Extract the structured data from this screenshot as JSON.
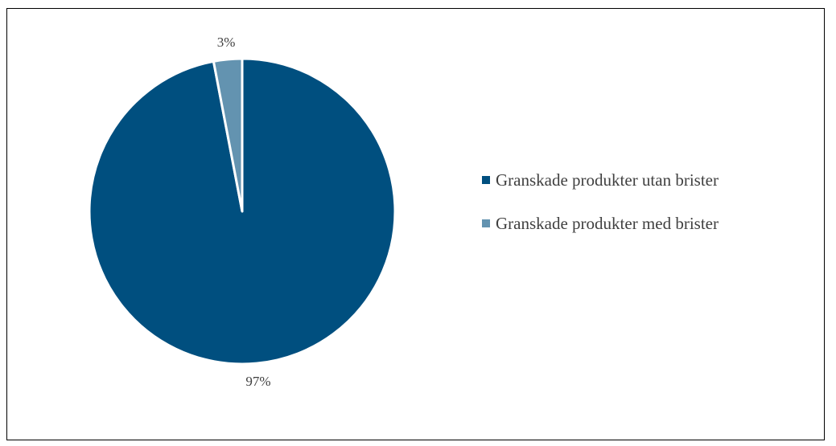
{
  "chart_data": {
    "type": "pie",
    "categories": [
      "Granskade produkter utan brister",
      "Granskade produkter med brister"
    ],
    "values": [
      97,
      3
    ],
    "data_labels": [
      "97%",
      "3%"
    ],
    "colors": [
      "#004F7F",
      "#6393B0"
    ],
    "slice_border_color": "#FFFFFF",
    "legend_position": "right",
    "title": ""
  }
}
